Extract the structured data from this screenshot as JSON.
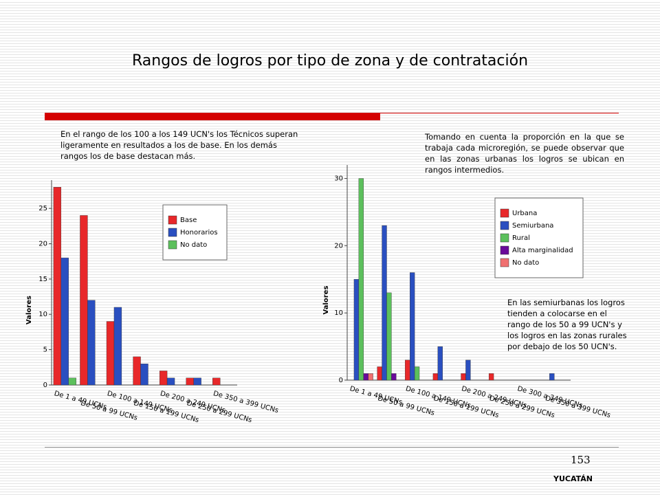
{
  "title": "Rangos de logros por tipo de zona y de contratación",
  "notes": [
    "En el rango de los 100 a los 149 UCN's los Técnicos superan ligeramente en resultados a los de base. En los demás rangos los de base destacan más.",
    "Tomando en cuenta la proporción en la que se trabaja cada microregión, se puede observar que en las zonas urbanas los logros se ubican en rangos intermedios.",
    "En las semiurbanas los logros tienden a colocarse en el rango de los 50 a 99 UCN's y los logros en las zonas rurales por debajo de los 50 UCN's."
  ],
  "page_number": "153",
  "region": "YUCATÁN",
  "chart_data": [
    {
      "type": "bar",
      "y_label": "Valores",
      "categories": [
        "De 1 a 49 UCNs",
        "De 50 a 99 UCNs",
        "De 100 a 149 UCNs",
        "De 150 a 199 UCNs",
        "De 200 a 249 UCNs",
        "De 250 a 299 UCNs",
        "De 350 a 399 UCNs"
      ],
      "series": [
        {
          "name": "Base",
          "color": "#e8282a",
          "values": [
            28,
            24,
            9,
            4,
            2,
            1,
            1
          ]
        },
        {
          "name": "Honorarios",
          "color": "#2a4fc0",
          "values": [
            18,
            12,
            11,
            3,
            1,
            1,
            0
          ]
        },
        {
          "name": "No dato",
          "color": "#5cc05c",
          "values": [
            1,
            0,
            0,
            0,
            0,
            0,
            0
          ]
        }
      ],
      "ylim": [
        0,
        29
      ],
      "yticks": [
        0,
        5,
        10,
        15,
        20,
        25
      ]
    },
    {
      "type": "bar",
      "y_label": "Valores",
      "categories": [
        "De 1 a 49 UCNs",
        "De 50 a 99 UCNs",
        "De 100 a 149 UCNs",
        "De 150 a 199 UCNs",
        "De 200 a 249 UCNs",
        "De 250 a 299 UCNs",
        "De 300 a 349 UCNs",
        "De 350 a 399 UCNs"
      ],
      "series": [
        {
          "name": "Urbana",
          "color": "#e8282a",
          "values": [
            0,
            2,
            3,
            1,
            1,
            1,
            0,
            0
          ]
        },
        {
          "name": "Semiurbana",
          "color": "#2a4fc0",
          "values": [
            15,
            23,
            16,
            5,
            3,
            0,
            0,
            1
          ]
        },
        {
          "name": "Rural",
          "color": "#5cc05c",
          "values": [
            30,
            13,
            2,
            0,
            0,
            0,
            0,
            0
          ]
        },
        {
          "name": "Alta marginalidad",
          "color": "#6a0a9a",
          "values": [
            1,
            1,
            0,
            0,
            0,
            0,
            0,
            0
          ]
        },
        {
          "name": "No dato",
          "color": "#f07070",
          "values": [
            1,
            0,
            0,
            0,
            0,
            0,
            0,
            0
          ]
        }
      ],
      "ylim": [
        0,
        32
      ],
      "yticks": [
        0,
        10,
        20,
        30
      ]
    }
  ]
}
